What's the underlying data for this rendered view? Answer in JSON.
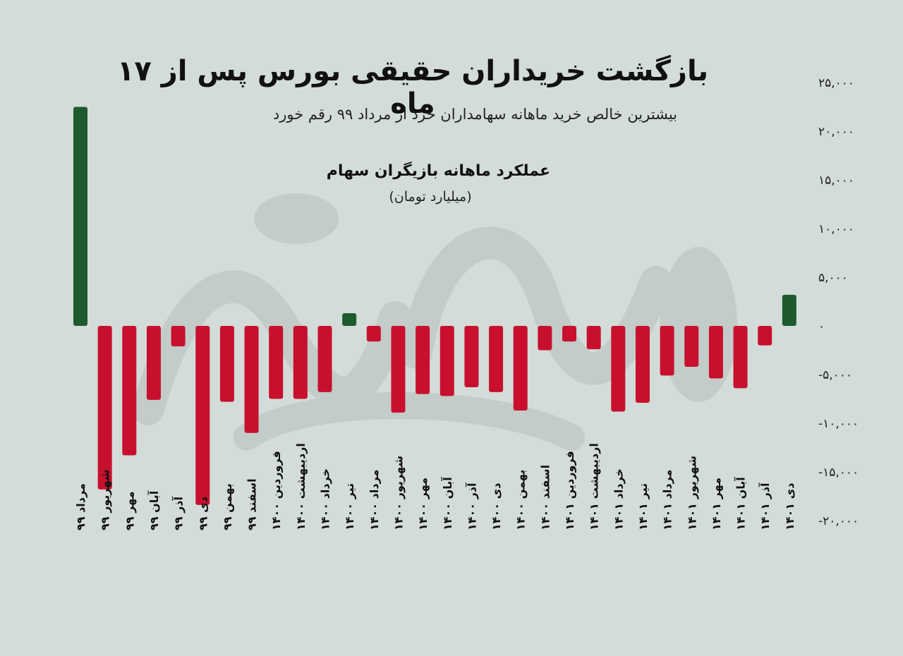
{
  "title": "بازگشت خریداران حقیقی بورس پس از ۱۷ ماه",
  "subtitle": "بیشترین خالص خرید ماهانه سهامداران خرد از مرداد ۹۹ رقم خورد",
  "chart_heading": "عملکرد ماهانه بازیگران سهام",
  "chart_unit": "(میلیارد تومان)",
  "colors": {
    "positive": "#1e5a2d",
    "negative": "#c8102e",
    "background": "#d3dcd8",
    "watermark": "#c3ccc8"
  },
  "chart_data": {
    "type": "bar",
    "title": "عملکرد ماهانه بازیگران سهام",
    "ylabel": "(میلیارد تومان)",
    "ylim": [
      -20000,
      25000
    ],
    "yticks": [
      25000,
      20000,
      15000,
      10000,
      5000,
      0,
      -5000,
      -10000,
      -15000,
      -20000
    ],
    "ytick_labels": [
      "۲۵,۰۰۰",
      "۲۰,۰۰۰",
      "۱۵,۰۰۰",
      "۱۰,۰۰۰",
      "۵,۰۰۰",
      "۰",
      "-۵,۰۰۰",
      "-۱۰,۰۰۰",
      "-۱۵,۰۰۰",
      "-۲۰,۰۰۰"
    ],
    "grid": false,
    "categories": [
      "مرداد ۹۹",
      "شهریور ۹۹",
      "مهر ۹۹",
      "آبان ۹۹",
      "آذر ۹۹",
      "دی ۹۹",
      "بهمن ۹۹",
      "اسفند ۹۹",
      "فروردین ۱۴۰۰",
      "اردیبهشت ۱۴۰۰",
      "خرداد ۱۴۰۰",
      "تیر ۱۴۰۰",
      "مرداد ۱۴۰۰",
      "شهریور ۱۴۰۰",
      "مهر ۱۴۰۰",
      "آبان ۱۴۰۰",
      "آذر ۱۴۰۰",
      "دی ۱۴۰۰",
      "بهمن ۱۴۰۰",
      "اسفند ۱۴۰۰",
      "فروردین ۱۴۰۱",
      "اردیبهشت ۱۴۰۱",
      "خرداد ۱۴۰۱",
      "تیر ۱۴۰۱",
      "مرداد ۱۴۰۱",
      "شهریور ۱۴۰۱",
      "مهر ۱۴۰۱",
      "آبان ۱۴۰۱",
      "آذر ۱۴۰۱",
      "دی ۱۴۰۱"
    ],
    "values": [
      22500,
      -16800,
      -13300,
      -7600,
      -2100,
      -18400,
      -7800,
      -11000,
      -7500,
      -7500,
      -6800,
      1300,
      -1600,
      -8900,
      -7000,
      -7200,
      -6300,
      -6800,
      -8700,
      -2500,
      -1600,
      -2400,
      -8800,
      -7900,
      -5100,
      -4200,
      -5400,
      -6400,
      -2000,
      3200
    ]
  }
}
